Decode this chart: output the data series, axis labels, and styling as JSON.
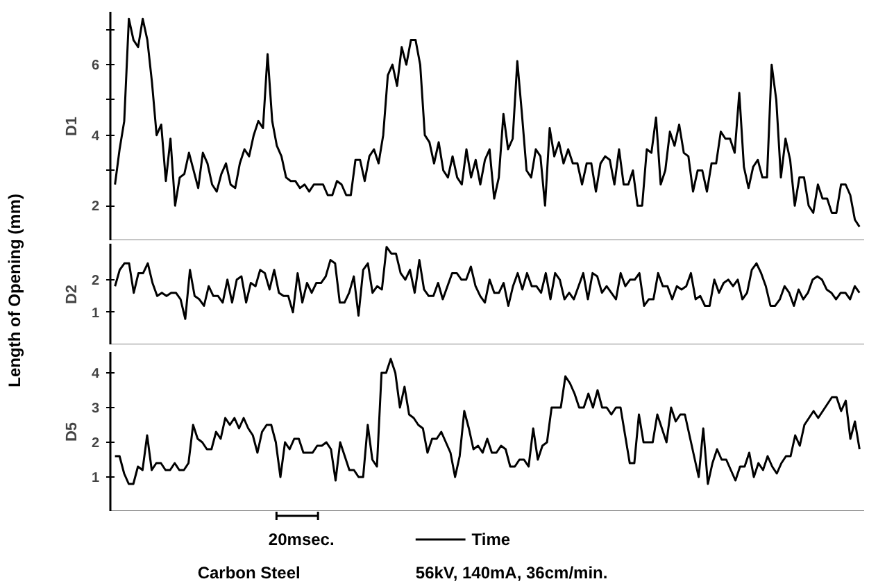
{
  "chart_data": [
    {
      "type": "line",
      "ylabel": "D1",
      "annotations": [
        "Length of Opening  (mm)"
      ],
      "ylim": [
        1,
        7.5
      ],
      "yticks": [
        2,
        {
          "value": 3,
          "label": null
        },
        4,
        {
          "value": 5,
          "label": null
        },
        6,
        {
          "value": 7,
          "label": null
        }
      ],
      "tick_labels": "y",
      "line_style": "solid",
      "categories": [
        null,
        null,
        null,
        null,
        null,
        null,
        null,
        null,
        null,
        null,
        null,
        null,
        null,
        null,
        null,
        null,
        null,
        null,
        null,
        null,
        null,
        null,
        null,
        null,
        null,
        null,
        null,
        null,
        null,
        null,
        null,
        null,
        null,
        null,
        null,
        null,
        null,
        null,
        null,
        null,
        null,
        null,
        null,
        null,
        null,
        null,
        null,
        null,
        null,
        null,
        null,
        null,
        null,
        null,
        null,
        null,
        null,
        null,
        null,
        null,
        null,
        null,
        null,
        null,
        null,
        null,
        null,
        null,
        null,
        null,
        null,
        null,
        null,
        null,
        null,
        null,
        null,
        null,
        null,
        null,
        null,
        null,
        null,
        null,
        null,
        null,
        null,
        null,
        null,
        null,
        null,
        null,
        null,
        null,
        null,
        null,
        null,
        null,
        null,
        null,
        null,
        null,
        null,
        null,
        null,
        null,
        null,
        null,
        null,
        null,
        null,
        null,
        null,
        null,
        null,
        null,
        null,
        null,
        null,
        null,
        null,
        null,
        null,
        null,
        null,
        null,
        null,
        null,
        null,
        null,
        null,
        null,
        null,
        null,
        null,
        null,
        null,
        null,
        null,
        null,
        null,
        null,
        null,
        null,
        null,
        null,
        null,
        null,
        null,
        null,
        null,
        null,
        null,
        null,
        null,
        null,
        null,
        null,
        null,
        null,
        null,
        null
      ],
      "series": [
        {
          "color": "#000000",
          "values": [
            2.6,
            3.6,
            4.4,
            7.3,
            6.7,
            6.5,
            7.3,
            6.7,
            5.5,
            4.0,
            4.3,
            2.7,
            3.9,
            2.0,
            2.8,
            2.9,
            3.5,
            3.0,
            2.5,
            3.5,
            3.2,
            2.6,
            2.4,
            2.9,
            3.2,
            2.6,
            2.5,
            3.2,
            3.6,
            3.4,
            4.0,
            4.4,
            4.2,
            6.3,
            4.4,
            3.7,
            3.4,
            2.8,
            2.7,
            2.7,
            2.5,
            2.6,
            2.4,
            2.6,
            2.6,
            2.6,
            2.3,
            2.3,
            2.7,
            2.6,
            2.3,
            2.3,
            3.3,
            3.3,
            2.7,
            3.4,
            3.6,
            3.2,
            4.0,
            5.7,
            6.0,
            5.4,
            6.5,
            6.0,
            6.7,
            6.7,
            6.0,
            4.0,
            3.8,
            3.2,
            3.8,
            3.0,
            2.8,
            3.4,
            2.8,
            2.6,
            3.6,
            2.8,
            3.3,
            2.6,
            3.3,
            3.6,
            2.2,
            2.8,
            4.6,
            3.6,
            3.9,
            6.1,
            4.6,
            3.0,
            2.8,
            3.6,
            3.4,
            2.0,
            4.2,
            3.4,
            3.8,
            3.2,
            3.6,
            3.2,
            3.2,
            2.6,
            3.2,
            3.2,
            2.4,
            3.2,
            3.4,
            3.3,
            2.6,
            3.6,
            2.6,
            2.6,
            3.0,
            2.0,
            2.0,
            3.6,
            3.5,
            4.5,
            2.6,
            3.0,
            4.1,
            3.7,
            4.3,
            3.5,
            3.4,
            2.4,
            3.0,
            3.0,
            2.4,
            3.2,
            3.2,
            4.1,
            3.9,
            3.9,
            3.5,
            5.2,
            3.1,
            2.5,
            3.1,
            3.3,
            2.8,
            2.8,
            6.0,
            5.0,
            2.8,
            3.9,
            3.3,
            2.0,
            2.8,
            2.8,
            2.0,
            1.8,
            2.6,
            2.2,
            2.2,
            1.8,
            1.8,
            2.6,
            2.6,
            2.3,
            1.6,
            1.4
          ]
        }
      ]
    },
    {
      "type": "line",
      "ylabel": "D2",
      "ylim": [
        0,
        3.1
      ],
      "yticks": [
        1,
        2
      ],
      "tick_labels": "y",
      "line_style": "solid",
      "categories": [
        null,
        null,
        null,
        null,
        null,
        null,
        null,
        null,
        null,
        null,
        null,
        null,
        null,
        null,
        null,
        null,
        null,
        null,
        null,
        null,
        null,
        null,
        null,
        null,
        null,
        null,
        null,
        null,
        null,
        null,
        null,
        null,
        null,
        null,
        null,
        null,
        null,
        null,
        null,
        null,
        null,
        null,
        null,
        null,
        null,
        null,
        null,
        null,
        null,
        null,
        null,
        null,
        null,
        null,
        null,
        null,
        null,
        null,
        null,
        null,
        null,
        null,
        null,
        null,
        null,
        null,
        null,
        null,
        null,
        null,
        null,
        null,
        null,
        null,
        null,
        null,
        null,
        null,
        null,
        null,
        null,
        null,
        null,
        null,
        null,
        null,
        null,
        null,
        null,
        null,
        null,
        null,
        null,
        null,
        null,
        null,
        null,
        null,
        null,
        null,
        null,
        null,
        null,
        null,
        null,
        null,
        null,
        null,
        null,
        null,
        null,
        null,
        null,
        null,
        null,
        null,
        null,
        null,
        null,
        null,
        null,
        null,
        null,
        null,
        null,
        null,
        null,
        null,
        null,
        null,
        null,
        null,
        null,
        null,
        null,
        null,
        null,
        null,
        null,
        null,
        null,
        null,
        null,
        null,
        null,
        null,
        null,
        null,
        null,
        null,
        null,
        null,
        null,
        null,
        null,
        null,
        null,
        null,
        null,
        null
      ],
      "series": [
        {
          "color": "#000000",
          "values": [
            1.8,
            2.3,
            2.5,
            2.5,
            1.6,
            2.2,
            2.2,
            2.5,
            1.9,
            1.5,
            1.6,
            1.5,
            1.6,
            1.6,
            1.4,
            0.8,
            2.3,
            1.5,
            1.4,
            1.2,
            1.8,
            1.5,
            1.5,
            1.3,
            2.0,
            1.3,
            2.0,
            2.1,
            1.3,
            1.9,
            1.8,
            2.3,
            2.2,
            1.7,
            2.3,
            1.6,
            1.5,
            1.5,
            1.0,
            2.2,
            1.3,
            1.9,
            1.6,
            1.9,
            1.9,
            2.1,
            2.6,
            2.5,
            1.3,
            1.3,
            1.6,
            2.1,
            0.9,
            2.3,
            2.5,
            1.6,
            1.8,
            1.7,
            3.0,
            2.8,
            2.8,
            2.2,
            2.0,
            2.3,
            1.6,
            2.6,
            1.7,
            1.5,
            1.5,
            1.9,
            1.4,
            1.8,
            2.2,
            2.2,
            2.0,
            2.0,
            2.4,
            1.8,
            1.5,
            1.3,
            2.0,
            1.6,
            1.6,
            1.9,
            1.2,
            1.8,
            2.2,
            1.7,
            2.2,
            1.8,
            1.8,
            1.6,
            2.2,
            1.4,
            2.2,
            2.0,
            1.4,
            1.6,
            1.4,
            1.8,
            2.2,
            1.4,
            2.2,
            2.1,
            1.6,
            1.8,
            1.6,
            1.4,
            2.2,
            1.8,
            2.0,
            2.0,
            2.2,
            1.2,
            1.4,
            1.4,
            2.2,
            1.8,
            1.8,
            1.4,
            1.8,
            1.7,
            1.8,
            2.2,
            1.4,
            1.5,
            1.2,
            1.2,
            2.0,
            1.6,
            1.9,
            2.0,
            1.8,
            2.0,
            1.4,
            1.6,
            2.3,
            2.5,
            2.2,
            1.8,
            1.2,
            1.2,
            1.4,
            1.8,
            1.6,
            1.2,
            1.7,
            1.4,
            1.6,
            2.0,
            2.1,
            2.0,
            1.7,
            1.6,
            1.4,
            1.6,
            1.6,
            1.4,
            1.8,
            1.6
          ]
        }
      ]
    },
    {
      "type": "line",
      "ylabel": "D5",
      "annotations": [
        "20msec.",
        "Time",
        "Carbon Steel",
        "56kV, 140mA, 36cm/min."
      ],
      "ylim": [
        0,
        4.6
      ],
      "yticks": [
        1,
        2,
        3,
        4
      ],
      "tick_labels": "y",
      "line_style": "solid",
      "categories": [
        null,
        null,
        null,
        null,
        null,
        null,
        null,
        null,
        null,
        null,
        null,
        null,
        null,
        null,
        null,
        null,
        null,
        null,
        null,
        null,
        null,
        null,
        null,
        null,
        null,
        null,
        null,
        null,
        null,
        null,
        null,
        null,
        null,
        null,
        null,
        null,
        null,
        null,
        null,
        null,
        null,
        null,
        null,
        null,
        null,
        null,
        null,
        null,
        null,
        null,
        null,
        null,
        null,
        null,
        null,
        null,
        null,
        null,
        null,
        null,
        null,
        null,
        null,
        null,
        null,
        null,
        null,
        null,
        null,
        null,
        null,
        null,
        null,
        null,
        null,
        null,
        null,
        null,
        null,
        null,
        null,
        null,
        null,
        null,
        null,
        null,
        null,
        null,
        null,
        null,
        null,
        null,
        null,
        null,
        null,
        null,
        null,
        null,
        null,
        null,
        null,
        null,
        null,
        null,
        null,
        null,
        null,
        null,
        null,
        null,
        null,
        null,
        null,
        null,
        null,
        null,
        null,
        null,
        null,
        null,
        null,
        null,
        null,
        null,
        null,
        null,
        null,
        null,
        null,
        null,
        null,
        null,
        null,
        null,
        null,
        null,
        null,
        null,
        null,
        null,
        null,
        null,
        null,
        null,
        null,
        null,
        null,
        null,
        null,
        null,
        null,
        null,
        null,
        null,
        null,
        null,
        null,
        null,
        null,
        null,
        null,
        null,
        null
      ],
      "series": [
        {
          "color": "#000000",
          "values": [
            1.6,
            1.6,
            1.1,
            0.8,
            0.8,
            1.3,
            1.2,
            2.2,
            1.2,
            1.4,
            1.4,
            1.2,
            1.2,
            1.4,
            1.2,
            1.2,
            1.4,
            2.5,
            2.1,
            2.0,
            1.8,
            1.8,
            2.3,
            2.1,
            2.7,
            2.5,
            2.7,
            2.4,
            2.7,
            2.4,
            2.2,
            1.7,
            2.3,
            2.5,
            2.5,
            2.0,
            1.0,
            2.0,
            1.8,
            2.1,
            2.1,
            1.7,
            1.7,
            1.7,
            1.9,
            1.9,
            2.0,
            1.8,
            0.9,
            2.0,
            1.6,
            1.2,
            1.2,
            1.0,
            1.0,
            2.5,
            1.5,
            1.3,
            4.0,
            4.0,
            4.4,
            4.0,
            3.0,
            3.6,
            2.8,
            2.7,
            2.5,
            2.4,
            1.7,
            2.1,
            2.1,
            2.3,
            2.0,
            1.7,
            1.0,
            1.6,
            2.9,
            2.4,
            1.8,
            1.9,
            1.7,
            2.1,
            1.7,
            1.7,
            1.9,
            1.8,
            1.3,
            1.3,
            1.5,
            1.5,
            1.3,
            2.4,
            1.5,
            1.9,
            2.0,
            3.0,
            3.0,
            3.0,
            3.9,
            3.7,
            3.4,
            3.0,
            3.0,
            3.4,
            3.0,
            3.5,
            3.0,
            3.0,
            2.8,
            3.0,
            3.0,
            2.2,
            1.4,
            1.4,
            2.8,
            2.0,
            2.0,
            2.0,
            2.8,
            2.4,
            2.0,
            3.0,
            2.6,
            2.8,
            2.8,
            2.2,
            1.6,
            1.0,
            2.4,
            0.8,
            1.4,
            1.8,
            1.5,
            1.5,
            1.2,
            0.9,
            1.3,
            1.3,
            1.7,
            1.0,
            1.4,
            1.2,
            1.6,
            1.3,
            1.1,
            1.4,
            1.6,
            1.6,
            2.2,
            1.9,
            2.5,
            2.7,
            2.9,
            2.7,
            2.9,
            3.1,
            3.3,
            3.3,
            2.9,
            3.2,
            2.1,
            2.6,
            1.8
          ]
        }
      ]
    }
  ]
}
